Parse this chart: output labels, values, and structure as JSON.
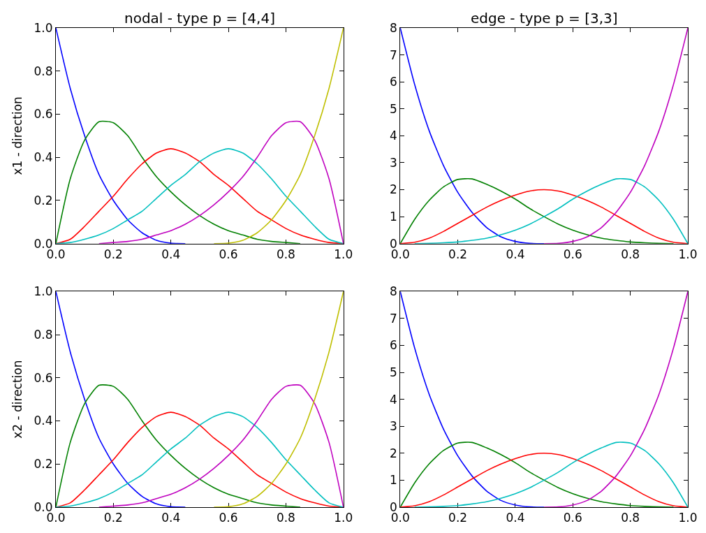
{
  "chart_data": [
    {
      "type": "line",
      "title": "nodal - type p = [4,4]",
      "ylabel": "x1 - direction",
      "x": [
        0,
        0.05,
        0.1,
        0.15,
        0.2,
        0.25,
        0.3,
        0.35,
        0.4,
        0.45,
        0.5,
        0.55,
        0.6,
        0.65,
        0.7,
        0.75,
        0.8,
        0.85,
        0.9,
        0.95,
        1
      ],
      "series": [
        {
          "color": "#0000ff",
          "values": [
            1,
            0.72,
            0.5,
            0.32,
            0.2,
            0.11,
            0.05,
            0.015,
            0.002,
            0,
            null,
            null,
            null,
            null,
            null,
            null,
            null,
            null,
            null,
            null,
            null
          ]
        },
        {
          "color": "#008000",
          "values": [
            0,
            0.3,
            0.48,
            0.565,
            0.56,
            0.5,
            0.4,
            0.31,
            0.24,
            0.18,
            0.13,
            0.09,
            0.06,
            0.04,
            0.02,
            0.01,
            0.005,
            0,
            null,
            null,
            null
          ]
        },
        {
          "color": "#ff0000",
          "values": [
            0,
            0.02,
            0.08,
            0.15,
            0.22,
            0.3,
            0.37,
            0.42,
            0.44,
            0.42,
            0.38,
            0.32,
            0.27,
            0.21,
            0.15,
            0.11,
            0.07,
            0.04,
            0.02,
            0.005,
            0
          ]
        },
        {
          "color": "#00bfbf",
          "values": [
            0,
            0.005,
            0.02,
            0.04,
            0.07,
            0.11,
            0.15,
            0.21,
            0.27,
            0.32,
            0.38,
            0.42,
            0.44,
            0.42,
            0.37,
            0.3,
            0.22,
            0.15,
            0.08,
            0.02,
            0
          ]
        },
        {
          "color": "#bf00bf",
          "values": [
            null,
            null,
            null,
            0,
            0.005,
            0.01,
            0.02,
            0.04,
            0.06,
            0.09,
            0.13,
            0.18,
            0.24,
            0.31,
            0.4,
            0.5,
            0.56,
            0.565,
            0.48,
            0.3,
            0
          ]
        },
        {
          "color": "#bfbf00",
          "values": [
            null,
            null,
            null,
            null,
            null,
            null,
            null,
            null,
            null,
            null,
            null,
            0,
            0.002,
            0.015,
            0.05,
            0.11,
            0.2,
            0.32,
            0.5,
            0.72,
            1
          ]
        }
      ],
      "xlim": [
        0,
        1
      ],
      "ylim": [
        0,
        1
      ],
      "xticks": [
        {
          "value": 0,
          "label": "0.0"
        },
        {
          "value": 0.2,
          "label": "0.2"
        },
        {
          "value": 0.4,
          "label": "0.4"
        },
        {
          "value": 0.6,
          "label": "0.6"
        },
        {
          "value": 0.8,
          "label": "0.8"
        },
        {
          "value": 1,
          "label": "1.0"
        }
      ],
      "yticks": [
        {
          "value": 0,
          "label": "0.0"
        },
        {
          "value": 0.2,
          "label": "0.2"
        },
        {
          "value": 0.4,
          "label": "0.4"
        },
        {
          "value": 0.6,
          "label": "0.6"
        },
        {
          "value": 0.8,
          "label": "0.8"
        },
        {
          "value": 1,
          "label": "1.0"
        }
      ]
    },
    {
      "type": "line",
      "title": "edge - type p = [3,3]",
      "x": [
        0,
        0.05,
        0.1,
        0.15,
        0.2,
        0.25,
        0.3,
        0.35,
        0.4,
        0.45,
        0.5,
        0.55,
        0.6,
        0.65,
        0.7,
        0.75,
        0.8,
        0.85,
        0.9,
        0.95,
        1
      ],
      "series": [
        {
          "color": "#0000ff",
          "values": [
            8,
            5.9,
            4.2,
            2.9,
            1.9,
            1.15,
            0.6,
            0.25,
            0.08,
            0.01,
            0,
            null,
            null,
            null,
            null,
            null,
            null,
            null,
            null,
            null,
            null
          ]
        },
        {
          "color": "#008000",
          "values": [
            0,
            0.9,
            1.6,
            2.1,
            2.38,
            2.4,
            2.2,
            1.95,
            1.65,
            1.3,
            1.0,
            0.72,
            0.5,
            0.33,
            0.2,
            0.12,
            0.06,
            0.03,
            0.01,
            0,
            null
          ]
        },
        {
          "color": "#ff0000",
          "values": [
            0,
            0.05,
            0.2,
            0.45,
            0.75,
            1.05,
            1.35,
            1.6,
            1.8,
            1.95,
            2.0,
            1.95,
            1.8,
            1.6,
            1.35,
            1.05,
            0.75,
            0.45,
            0.2,
            0.05,
            0
          ]
        },
        {
          "color": "#00bfbf",
          "values": [
            null,
            0,
            0.01,
            0.03,
            0.06,
            0.12,
            0.2,
            0.33,
            0.5,
            0.72,
            1.0,
            1.3,
            1.65,
            1.95,
            2.2,
            2.4,
            2.38,
            2.1,
            1.6,
            0.9,
            0
          ]
        },
        {
          "color": "#bf00bf",
          "values": [
            null,
            null,
            null,
            null,
            null,
            null,
            null,
            null,
            null,
            null,
            0,
            0.01,
            0.08,
            0.25,
            0.6,
            1.15,
            1.9,
            2.9,
            4.2,
            5.9,
            8
          ]
        }
      ],
      "xlim": [
        0,
        1
      ],
      "ylim": [
        0,
        8
      ],
      "xticks": [
        {
          "value": 0,
          "label": "0.0"
        },
        {
          "value": 0.2,
          "label": "0.2"
        },
        {
          "value": 0.4,
          "label": "0.4"
        },
        {
          "value": 0.6,
          "label": "0.6"
        },
        {
          "value": 0.8,
          "label": "0.8"
        },
        {
          "value": 1,
          "label": "1.0"
        }
      ],
      "yticks": [
        0,
        1,
        2,
        3,
        4,
        5,
        6,
        7,
        8
      ]
    },
    {
      "type": "line",
      "ylabel": "x2 - direction",
      "x": [
        0,
        0.05,
        0.1,
        0.15,
        0.2,
        0.25,
        0.3,
        0.35,
        0.4,
        0.45,
        0.5,
        0.55,
        0.6,
        0.65,
        0.7,
        0.75,
        0.8,
        0.85,
        0.9,
        0.95,
        1
      ],
      "series": [
        {
          "color": "#0000ff",
          "values": [
            1,
            0.72,
            0.5,
            0.32,
            0.2,
            0.11,
            0.05,
            0.015,
            0.002,
            0,
            null,
            null,
            null,
            null,
            null,
            null,
            null,
            null,
            null,
            null,
            null
          ]
        },
        {
          "color": "#008000",
          "values": [
            0,
            0.3,
            0.48,
            0.565,
            0.56,
            0.5,
            0.4,
            0.31,
            0.24,
            0.18,
            0.13,
            0.09,
            0.06,
            0.04,
            0.02,
            0.01,
            0.005,
            0,
            null,
            null,
            null
          ]
        },
        {
          "color": "#ff0000",
          "values": [
            0,
            0.02,
            0.08,
            0.15,
            0.22,
            0.3,
            0.37,
            0.42,
            0.44,
            0.42,
            0.38,
            0.32,
            0.27,
            0.21,
            0.15,
            0.11,
            0.07,
            0.04,
            0.02,
            0.005,
            0
          ]
        },
        {
          "color": "#00bfbf",
          "values": [
            0,
            0.005,
            0.02,
            0.04,
            0.07,
            0.11,
            0.15,
            0.21,
            0.27,
            0.32,
            0.38,
            0.42,
            0.44,
            0.42,
            0.37,
            0.3,
            0.22,
            0.15,
            0.08,
            0.02,
            0
          ]
        },
        {
          "color": "#bf00bf",
          "values": [
            null,
            null,
            null,
            0,
            0.005,
            0.01,
            0.02,
            0.04,
            0.06,
            0.09,
            0.13,
            0.18,
            0.24,
            0.31,
            0.4,
            0.5,
            0.56,
            0.565,
            0.48,
            0.3,
            0
          ]
        },
        {
          "color": "#bfbf00",
          "values": [
            null,
            null,
            null,
            null,
            null,
            null,
            null,
            null,
            null,
            null,
            null,
            0,
            0.002,
            0.015,
            0.05,
            0.11,
            0.2,
            0.32,
            0.5,
            0.72,
            1
          ]
        }
      ],
      "xlim": [
        0,
        1
      ],
      "ylim": [
        0,
        1
      ],
      "xticks": [
        {
          "value": 0,
          "label": "0.0"
        },
        {
          "value": 0.2,
          "label": "0.2"
        },
        {
          "value": 0.4,
          "label": "0.4"
        },
        {
          "value": 0.6,
          "label": "0.6"
        },
        {
          "value": 0.8,
          "label": "0.8"
        },
        {
          "value": 1,
          "label": "1.0"
        }
      ],
      "yticks": [
        {
          "value": 0,
          "label": "0.0"
        },
        {
          "value": 0.2,
          "label": "0.2"
        },
        {
          "value": 0.4,
          "label": "0.4"
        },
        {
          "value": 0.6,
          "label": "0.6"
        },
        {
          "value": 0.8,
          "label": "0.8"
        },
        {
          "value": 1,
          "label": "1.0"
        }
      ]
    },
    {
      "type": "line",
      "x": [
        0,
        0.05,
        0.1,
        0.15,
        0.2,
        0.25,
        0.3,
        0.35,
        0.4,
        0.45,
        0.5,
        0.55,
        0.6,
        0.65,
        0.7,
        0.75,
        0.8,
        0.85,
        0.9,
        0.95,
        1
      ],
      "series": [
        {
          "color": "#0000ff",
          "values": [
            8,
            5.9,
            4.2,
            2.9,
            1.9,
            1.15,
            0.6,
            0.25,
            0.08,
            0.01,
            0,
            null,
            null,
            null,
            null,
            null,
            null,
            null,
            null,
            null,
            null
          ]
        },
        {
          "color": "#008000",
          "values": [
            0,
            0.9,
            1.6,
            2.1,
            2.38,
            2.4,
            2.2,
            1.95,
            1.65,
            1.3,
            1.0,
            0.72,
            0.5,
            0.33,
            0.2,
            0.12,
            0.06,
            0.03,
            0.01,
            0,
            null
          ]
        },
        {
          "color": "#ff0000",
          "values": [
            0,
            0.05,
            0.2,
            0.45,
            0.75,
            1.05,
            1.35,
            1.6,
            1.8,
            1.95,
            2.0,
            1.95,
            1.8,
            1.6,
            1.35,
            1.05,
            0.75,
            0.45,
            0.2,
            0.05,
            0
          ]
        },
        {
          "color": "#00bfbf",
          "values": [
            null,
            0,
            0.01,
            0.03,
            0.06,
            0.12,
            0.2,
            0.33,
            0.5,
            0.72,
            1.0,
            1.3,
            1.65,
            1.95,
            2.2,
            2.4,
            2.38,
            2.1,
            1.6,
            0.9,
            0
          ]
        },
        {
          "color": "#bf00bf",
          "values": [
            null,
            null,
            null,
            null,
            null,
            null,
            null,
            null,
            null,
            null,
            0,
            0.01,
            0.08,
            0.25,
            0.6,
            1.15,
            1.9,
            2.9,
            4.2,
            5.9,
            8
          ]
        }
      ],
      "xlim": [
        0,
        1
      ],
      "ylim": [
        0,
        8
      ],
      "xticks": [
        {
          "value": 0,
          "label": "0.0"
        },
        {
          "value": 0.2,
          "label": "0.2"
        },
        {
          "value": 0.4,
          "label": "0.4"
        },
        {
          "value": 0.6,
          "label": "0.6"
        },
        {
          "value": 0.8,
          "label": "0.8"
        },
        {
          "value": 1,
          "label": "1.0"
        }
      ],
      "yticks": [
        0,
        1,
        2,
        3,
        4,
        5,
        6,
        7,
        8
      ]
    }
  ]
}
